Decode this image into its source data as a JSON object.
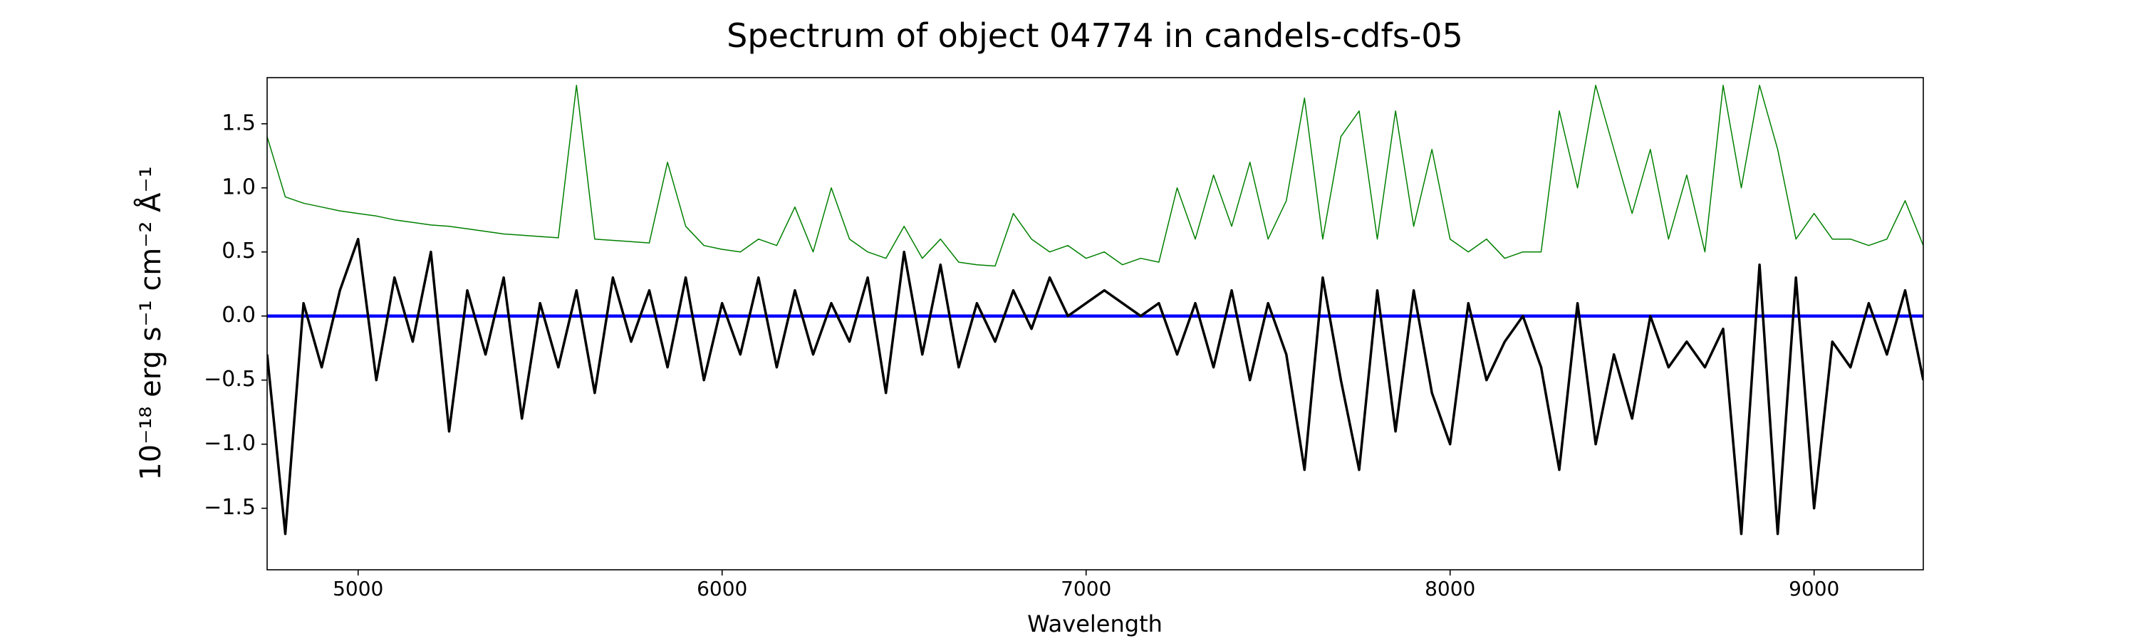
{
  "chart_data": {
    "type": "line",
    "title": "Spectrum of object 04774 in candels-cdfs-05",
    "xlabel": "Wavelength",
    "ylabel": "10⁻¹⁸ erg s⁻¹ cm⁻² Å⁻¹",
    "xlim": [
      4750,
      9300
    ],
    "ylim": [
      -1.98,
      1.86
    ],
    "xticks": [
      5000,
      6000,
      7000,
      8000,
      9000
    ],
    "yticks": [
      {
        "value": -1.5,
        "label": "−1.5"
      },
      {
        "value": -1,
        "label": "−1.0"
      },
      {
        "value": -0.5,
        "label": "−0.5"
      },
      {
        "value": 0,
        "label": "0.0"
      },
      0.5,
      {
        "value": 1,
        "label": "1.0"
      },
      1.5
    ],
    "x": [
      4750,
      4800,
      4850,
      4900,
      4950,
      5000,
      5050,
      5100,
      5150,
      5200,
      5250,
      5300,
      5350,
      5400,
      5450,
      5500,
      5550,
      5600,
      5650,
      5700,
      5750,
      5800,
      5850,
      5900,
      5950,
      6000,
      6050,
      6100,
      6150,
      6200,
      6250,
      6300,
      6350,
      6400,
      6450,
      6500,
      6550,
      6600,
      6650,
      6700,
      6750,
      6800,
      6850,
      6900,
      6950,
      7000,
      7050,
      7100,
      7150,
      7200,
      7250,
      7300,
      7350,
      7400,
      7450,
      7500,
      7550,
      7600,
      7650,
      7700,
      7750,
      7800,
      7850,
      7900,
      7950,
      8000,
      8050,
      8100,
      8150,
      8200,
      8250,
      8300,
      8350,
      8400,
      8450,
      8500,
      8550,
      8600,
      8650,
      8700,
      8750,
      8800,
      8850,
      8900,
      8950,
      9000,
      9050,
      9100,
      9150,
      9200,
      9250,
      9300
    ],
    "series": [
      {
        "color": "#008000",
        "width": 1.5,
        "values": [
          1.4,
          0.93,
          0.88,
          0.85,
          0.82,
          0.8,
          0.78,
          0.75,
          0.73,
          0.71,
          0.7,
          0.68,
          0.66,
          0.64,
          0.63,
          0.62,
          0.61,
          1.8,
          0.6,
          0.59,
          0.58,
          0.57,
          1.2,
          0.7,
          0.55,
          0.52,
          0.5,
          0.6,
          0.55,
          0.85,
          0.5,
          1.0,
          0.6,
          0.5,
          0.45,
          0.7,
          0.45,
          0.6,
          0.42,
          0.4,
          0.39,
          0.8,
          0.6,
          0.5,
          0.55,
          0.45,
          0.5,
          0.4,
          0.45,
          0.42,
          1.0,
          0.6,
          1.1,
          0.7,
          1.2,
          0.6,
          0.9,
          1.7,
          0.6,
          1.4,
          1.6,
          0.6,
          1.6,
          0.7,
          1.3,
          0.6,
          0.5,
          0.6,
          0.45,
          0.5,
          0.5,
          1.6,
          1.0,
          1.8,
          1.3,
          0.8,
          1.3,
          0.6,
          1.1,
          0.5,
          1.8,
          1.0,
          1.8,
          1.3,
          0.6,
          0.8,
          0.6,
          0.6,
          0.55,
          0.6,
          0.9,
          0.55
        ]
      },
      {
        "color": "#0000ff",
        "width": 4.5,
        "x": [
          4750,
          9300
        ],
        "values": [
          0,
          0
        ]
      },
      {
        "color": "#000000",
        "width": 3.5,
        "values": [
          -0.3,
          -1.7,
          0.1,
          -0.4,
          0.2,
          0.6,
          -0.5,
          0.3,
          -0.2,
          0.5,
          -0.9,
          0.2,
          -0.3,
          0.3,
          -0.8,
          0.1,
          -0.4,
          0.2,
          -0.6,
          0.3,
          -0.2,
          0.2,
          -0.4,
          0.3,
          -0.5,
          0.1,
          -0.3,
          0.3,
          -0.4,
          0.2,
          -0.3,
          0.1,
          -0.2,
          0.3,
          -0.6,
          0.5,
          -0.3,
          0.4,
          -0.4,
          0.1,
          -0.2,
          0.2,
          -0.1,
          0.3,
          0.0,
          0.1,
          0.2,
          0.1,
          0.0,
          0.1,
          -0.3,
          0.1,
          -0.4,
          0.2,
          -0.5,
          0.1,
          -0.3,
          -1.2,
          0.3,
          -0.5,
          -1.2,
          0.2,
          -0.9,
          0.2,
          -0.6,
          -1.0,
          0.1,
          -0.5,
          -0.2,
          0.0,
          -0.4,
          -1.2,
          0.1,
          -1.0,
          -0.3,
          -0.8,
          0.0,
          -0.4,
          -0.2,
          -0.4,
          -0.1,
          -1.7,
          0.4,
          -1.7,
          0.3,
          -1.5,
          -0.2,
          -0.4,
          0.1,
          -0.3,
          0.2,
          -0.5
        ]
      }
    ]
  }
}
